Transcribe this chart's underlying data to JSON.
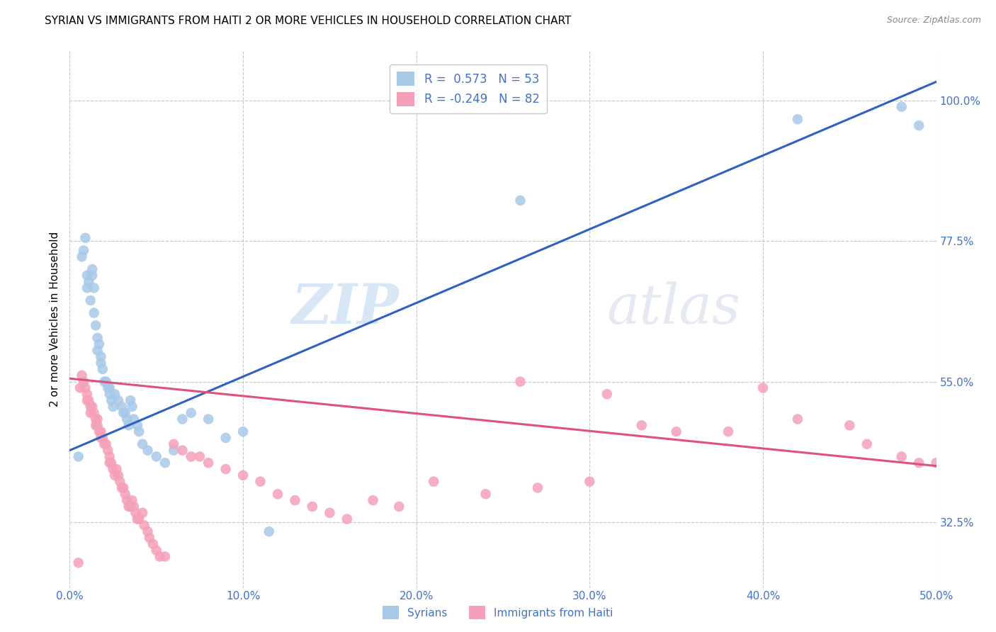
{
  "title": "SYRIAN VS IMMIGRANTS FROM HAITI 2 OR MORE VEHICLES IN HOUSEHOLD CORRELATION CHART",
  "source": "Source: ZipAtlas.com",
  "ylabel": "2 or more Vehicles in Household",
  "ytick_labels": [
    "32.5%",
    "55.0%",
    "77.5%",
    "100.0%"
  ],
  "ytick_vals": [
    0.325,
    0.55,
    0.775,
    1.0
  ],
  "xtick_labels": [
    "0.0%",
    "10.0%",
    "20.0%",
    "30.0%",
    "40.0%",
    "50.0%"
  ],
  "xtick_vals": [
    0.0,
    0.1,
    0.2,
    0.3,
    0.4,
    0.5
  ],
  "legend_r_syrian": "0.573",
  "legend_n_syrian": "53",
  "legend_r_haiti": "-0.249",
  "legend_n_haiti": "82",
  "color_syrian": "#a8c8e8",
  "color_haiti": "#f4a0b8",
  "color_line_syrian": "#3060c0",
  "color_line_haiti": "#e05080",
  "color_text_blue": "#4472c4",
  "xlim": [
    0.0,
    0.5
  ],
  "ylim": [
    0.22,
    1.08
  ],
  "syrian_line_x0": 0.0,
  "syrian_line_y0": 0.44,
  "syrian_line_x1": 0.5,
  "syrian_line_y1": 1.03,
  "haiti_line_x0": 0.0,
  "haiti_line_y0": 0.555,
  "haiti_line_x1": 0.5,
  "haiti_line_y1": 0.415,
  "syrian_points_x": [
    0.005,
    0.007,
    0.008,
    0.009,
    0.01,
    0.01,
    0.011,
    0.012,
    0.013,
    0.013,
    0.014,
    0.014,
    0.015,
    0.016,
    0.016,
    0.017,
    0.018,
    0.018,
    0.019,
    0.02,
    0.021,
    0.022,
    0.023,
    0.023,
    0.024,
    0.025,
    0.026,
    0.028,
    0.03,
    0.031,
    0.032,
    0.033,
    0.034,
    0.035,
    0.036,
    0.037,
    0.039,
    0.04,
    0.042,
    0.045,
    0.05,
    0.055,
    0.06,
    0.065,
    0.07,
    0.08,
    0.09,
    0.1,
    0.115,
    0.26,
    0.42,
    0.48,
    0.49
  ],
  "syrian_points_y": [
    0.43,
    0.75,
    0.76,
    0.78,
    0.72,
    0.7,
    0.71,
    0.68,
    0.73,
    0.72,
    0.7,
    0.66,
    0.64,
    0.62,
    0.6,
    0.61,
    0.58,
    0.59,
    0.57,
    0.55,
    0.55,
    0.54,
    0.53,
    0.54,
    0.52,
    0.51,
    0.53,
    0.52,
    0.51,
    0.5,
    0.5,
    0.49,
    0.48,
    0.52,
    0.51,
    0.49,
    0.48,
    0.47,
    0.45,
    0.44,
    0.43,
    0.42,
    0.44,
    0.49,
    0.5,
    0.49,
    0.46,
    0.47,
    0.31,
    0.84,
    0.97,
    0.99,
    0.96
  ],
  "haiti_points_x": [
    0.005,
    0.006,
    0.007,
    0.008,
    0.009,
    0.01,
    0.01,
    0.011,
    0.012,
    0.012,
    0.013,
    0.014,
    0.015,
    0.015,
    0.016,
    0.016,
    0.017,
    0.018,
    0.018,
    0.019,
    0.02,
    0.021,
    0.022,
    0.023,
    0.023,
    0.024,
    0.025,
    0.026,
    0.027,
    0.028,
    0.029,
    0.03,
    0.031,
    0.032,
    0.033,
    0.034,
    0.035,
    0.036,
    0.037,
    0.038,
    0.039,
    0.04,
    0.042,
    0.043,
    0.045,
    0.046,
    0.048,
    0.05,
    0.052,
    0.055,
    0.06,
    0.065,
    0.07,
    0.075,
    0.08,
    0.09,
    0.1,
    0.11,
    0.12,
    0.13,
    0.14,
    0.15,
    0.16,
    0.175,
    0.19,
    0.21,
    0.24,
    0.27,
    0.3,
    0.33,
    0.35,
    0.38,
    0.4,
    0.42,
    0.45,
    0.46,
    0.48,
    0.49,
    0.26,
    0.31,
    0.5,
    0.51
  ],
  "haiti_points_y": [
    0.26,
    0.54,
    0.56,
    0.55,
    0.54,
    0.53,
    0.52,
    0.52,
    0.51,
    0.5,
    0.51,
    0.5,
    0.49,
    0.48,
    0.49,
    0.48,
    0.47,
    0.46,
    0.47,
    0.46,
    0.45,
    0.45,
    0.44,
    0.43,
    0.42,
    0.42,
    0.41,
    0.4,
    0.41,
    0.4,
    0.39,
    0.38,
    0.38,
    0.37,
    0.36,
    0.35,
    0.35,
    0.36,
    0.35,
    0.34,
    0.33,
    0.33,
    0.34,
    0.32,
    0.31,
    0.3,
    0.29,
    0.28,
    0.27,
    0.27,
    0.45,
    0.44,
    0.43,
    0.43,
    0.42,
    0.41,
    0.4,
    0.39,
    0.37,
    0.36,
    0.35,
    0.34,
    0.33,
    0.36,
    0.35,
    0.39,
    0.37,
    0.38,
    0.39,
    0.48,
    0.47,
    0.47,
    0.54,
    0.49,
    0.48,
    0.45,
    0.43,
    0.42,
    0.55,
    0.53,
    0.42,
    0.41
  ]
}
